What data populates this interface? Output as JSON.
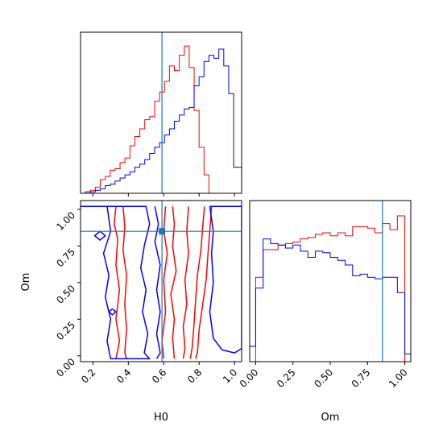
{
  "colors": {
    "series_a": "#ff0000",
    "series_b": "#0000ff",
    "truth": "#1f77b4",
    "axes": "#000000"
  },
  "chart_data": [
    {
      "type": "histogram",
      "panel": "H0 marginal",
      "xlim": [
        0.13,
        1.04
      ],
      "x_ticks": [
        0.2,
        0.4,
        0.6,
        0.8,
        1.0
      ],
      "x_tick_labels_shown": false,
      "y_ticks_shown": false,
      "ylim": [
        0,
        1.05
      ],
      "truth_x": 0.59,
      "bin_edges": [
        0.13,
        0.1579,
        0.1858,
        0.2137,
        0.2416,
        0.2695,
        0.2974,
        0.3253,
        0.3532,
        0.3811,
        0.409,
        0.4369,
        0.4648,
        0.4927,
        0.5206,
        0.5485,
        0.5764,
        0.6043,
        0.6322,
        0.6601,
        0.688,
        0.7159,
        0.7438,
        0.7717,
        0.7996,
        0.8275,
        0.8554,
        0.8833,
        0.9112,
        0.9391,
        0.967,
        0.9949,
        1.04
      ],
      "series": [
        {
          "color": "#ff0000",
          "heights": [
            0.0,
            0.0,
            0.02,
            0.04,
            0.09,
            0.11,
            0.15,
            0.16,
            0.2,
            0.23,
            0.31,
            0.37,
            0.42,
            0.48,
            0.5,
            0.6,
            0.66,
            0.73,
            0.83,
            0.8,
            0.9,
            0.96,
            0.82,
            0.54,
            0.3,
            0.12,
            0.0,
            0.0,
            0.0,
            0.0,
            0.0,
            0.0
          ]
        },
        {
          "color": "#0000ff",
          "heights": [
            0.0,
            0.01,
            0.01,
            0.02,
            0.03,
            0.05,
            0.06,
            0.08,
            0.1,
            0.12,
            0.14,
            0.17,
            0.19,
            0.22,
            0.26,
            0.3,
            0.33,
            0.38,
            0.42,
            0.47,
            0.51,
            0.55,
            0.56,
            0.7,
            0.76,
            0.86,
            0.9,
            0.88,
            0.94,
            0.83,
            0.65,
            0.17
          ]
        }
      ]
    },
    {
      "type": "contour",
      "panel": "H0 vs Om",
      "xlabel": "H0",
      "ylabel": "Om",
      "xlim": [
        0.13,
        1.04
      ],
      "ylim": [
        -0.04,
        1.06
      ],
      "x_ticks": [
        0.2,
        0.4,
        0.6,
        0.8,
        1.0
      ],
      "x_tick_labels": [
        "0.2",
        "0.4",
        "0.6",
        "0.8",
        "1.0"
      ],
      "y_ticks": [
        0.0,
        0.25,
        0.5,
        0.75,
        1.0
      ],
      "y_tick_labels": [
        "0.00",
        "0.25",
        "0.50",
        "0.75",
        "1.00"
      ],
      "truth_point": [
        0.59,
        0.85
      ],
      "series": [
        {
          "color": "#ff0000",
          "contours": [
            [
              [
                0.33,
                1.02
              ],
              [
                0.32,
                0.9
              ],
              [
                0.34,
                0.8
              ],
              [
                0.33,
                0.62
              ],
              [
                0.35,
                0.45
              ],
              [
                0.33,
                0.25
              ],
              [
                0.35,
                0.1
              ],
              [
                0.33,
                -0.02
              ]
            ],
            [
              [
                0.37,
                1.02
              ],
              [
                0.38,
                0.88
              ],
              [
                0.37,
                0.72
              ],
              [
                0.39,
                0.55
              ],
              [
                0.38,
                0.35
              ],
              [
                0.39,
                0.18
              ],
              [
                0.38,
                0.02
              ],
              [
                0.39,
                -0.02
              ]
            ],
            [
              [
                0.61,
                1.02
              ],
              [
                0.6,
                0.85
              ],
              [
                0.62,
                0.7
              ],
              [
                0.6,
                0.52
              ],
              [
                0.61,
                0.3
              ],
              [
                0.59,
                0.1
              ],
              [
                0.6,
                -0.02
              ]
            ],
            [
              [
                0.65,
                1.02
              ],
              [
                0.66,
                0.9
              ],
              [
                0.65,
                0.75
              ],
              [
                0.67,
                0.58
              ],
              [
                0.64,
                0.42
              ],
              [
                0.66,
                0.25
              ],
              [
                0.65,
                0.12
              ],
              [
                0.66,
                -0.02
              ]
            ],
            [
              [
                0.74,
                1.02
              ],
              [
                0.73,
                0.85
              ],
              [
                0.74,
                0.7
              ],
              [
                0.72,
                0.52
              ],
              [
                0.73,
                0.35
              ],
              [
                0.71,
                0.2
              ],
              [
                0.72,
                0.05
              ],
              [
                0.71,
                -0.02
              ]
            ],
            [
              [
                0.83,
                1.02
              ],
              [
                0.82,
                0.88
              ],
              [
                0.81,
                0.72
              ],
              [
                0.79,
                0.55
              ],
              [
                0.78,
                0.38
              ],
              [
                0.77,
                0.2
              ],
              [
                0.76,
                0.05
              ],
              [
                0.75,
                -0.02
              ]
            ],
            [
              [
                0.87,
                1.02
              ],
              [
                0.86,
                0.85
              ],
              [
                0.85,
                0.7
              ],
              [
                0.84,
                0.52
              ],
              [
                0.82,
                0.35
              ],
              [
                0.8,
                0.18
              ],
              [
                0.79,
                0.02
              ],
              [
                0.78,
                -0.02
              ]
            ]
          ]
        },
        {
          "color": "#0000ff",
          "contours": [
            [
              [
                0.13,
                1.02
              ],
              [
                0.5,
                1.02
              ],
              [
                0.52,
                0.9
              ],
              [
                0.49,
                0.75
              ],
              [
                0.47,
                0.6
              ],
              [
                0.5,
                0.45
              ],
              [
                0.48,
                0.3
              ],
              [
                0.51,
                0.15
              ],
              [
                0.49,
                0.02
              ],
              [
                0.52,
                -0.02
              ],
              [
                0.3,
                -0.02
              ],
              [
                0.28,
                0.1
              ],
              [
                0.3,
                0.25
              ],
              [
                0.27,
                0.4
              ],
              [
                0.29,
                0.55
              ],
              [
                0.26,
                0.7
              ],
              [
                0.3,
                0.85
              ],
              [
                0.28,
                1.02
              ]
            ],
            [
              [
                0.55,
                1.02
              ],
              [
                0.57,
                0.9
              ],
              [
                0.55,
                0.78
              ],
              [
                0.58,
                0.62
              ],
              [
                0.56,
                0.45
              ],
              [
                0.58,
                0.3
              ],
              [
                0.56,
                0.15
              ],
              [
                0.58,
                0.02
              ],
              [
                0.56,
                -0.02
              ]
            ],
            [
              [
                0.86,
                1.02
              ],
              [
                1.04,
                1.02
              ],
              [
                1.04,
                0.05
              ],
              [
                1.0,
                0.02
              ],
              [
                0.93,
                0.04
              ],
              [
                0.88,
                0.12
              ],
              [
                0.86,
                0.3
              ],
              [
                0.88,
                0.5
              ],
              [
                0.87,
                0.7
              ],
              [
                0.88,
                0.85
              ],
              [
                0.86,
                1.02
              ]
            ],
            [
              [
                0.24,
                0.85
              ],
              [
                0.27,
                0.82
              ],
              [
                0.24,
                0.79
              ],
              [
                0.21,
                0.82
              ],
              [
                0.24,
                0.85
              ]
            ],
            [
              [
                0.31,
                0.32
              ],
              [
                0.33,
                0.3
              ],
              [
                0.31,
                0.28
              ],
              [
                0.29,
                0.3
              ],
              [
                0.31,
                0.32
              ]
            ]
          ]
        }
      ]
    },
    {
      "type": "histogram",
      "panel": "Om marginal",
      "xlabel": "Om",
      "xlim": [
        -0.04,
        1.04
      ],
      "x_ticks": [
        0.0,
        0.25,
        0.5,
        0.75,
        1.0
      ],
      "x_tick_labels": [
        "0.00",
        "0.25",
        "0.50",
        "0.75",
        "1.00"
      ],
      "y_ticks_shown": false,
      "ylim": [
        0,
        1.05
      ],
      "truth_x": 0.85,
      "bin_edges": [
        -0.04,
        0.0,
        0.05,
        0.1,
        0.15,
        0.2,
        0.25,
        0.3,
        0.35,
        0.4,
        0.45,
        0.5,
        0.55,
        0.6,
        0.65,
        0.7,
        0.75,
        0.8,
        0.85,
        0.9,
        0.95,
        1.0,
        1.04
      ],
      "series": [
        {
          "color": "#ff0000",
          "heights": [
            0.0,
            0.55,
            0.73,
            0.73,
            0.76,
            0.77,
            0.78,
            0.8,
            0.81,
            0.83,
            0.84,
            0.82,
            0.84,
            0.82,
            0.88,
            0.88,
            0.87,
            0.84,
            0.9,
            0.86,
            0.95,
            0.0
          ]
        },
        {
          "color": "#0000ff",
          "heights": [
            0.1,
            0.48,
            0.8,
            0.77,
            0.76,
            0.74,
            0.76,
            0.72,
            0.68,
            0.72,
            0.71,
            0.68,
            0.66,
            0.63,
            0.56,
            0.57,
            0.55,
            0.54,
            0.55,
            0.55,
            0.45,
            0.05
          ]
        }
      ]
    }
  ]
}
